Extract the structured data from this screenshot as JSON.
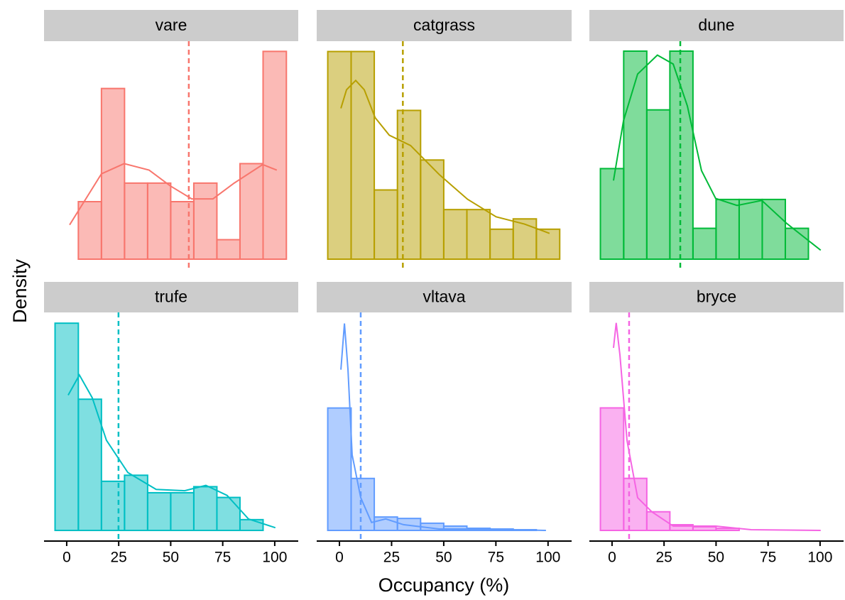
{
  "axis_titles": {
    "x": "Occupancy (%)",
    "y": "Density"
  },
  "chart_data": [
    {
      "type": "histogram",
      "title": "vare",
      "color": "#f8766d",
      "bins": [
        -5.6,
        5.6,
        16.7,
        27.8,
        38.9,
        50,
        61.1,
        72.2,
        83.3,
        94.4,
        105.6
      ],
      "values": [
        0,
        0.0062,
        0.0184,
        0.0082,
        0.0082,
        0.0062,
        0.0082,
        0.0021,
        0.0103,
        0.0224
      ],
      "mean": 58.7,
      "density": {
        "x": [
          1.4,
          16.7,
          27.6,
          39.6,
          49.8,
          60.1,
          70.3,
          80.5,
          94.2,
          101
        ],
        "y": [
          0.0037,
          0.0092,
          0.0103,
          0.0096,
          0.0079,
          0.0065,
          0.0065,
          0.0082,
          0.0102,
          0.0096
        ]
      },
      "xlim": [
        -10.9,
        111.3
      ],
      "ylim": [
        0,
        0.0235
      ]
    },
    {
      "type": "histogram",
      "title": "catgrass",
      "color": "#b79f00",
      "bins": [
        -5.6,
        5.6,
        16.7,
        27.8,
        38.9,
        50,
        61.1,
        72.2,
        83.3,
        94.4,
        105.6
      ],
      "values": [
        0.0201,
        0.0201,
        0.0067,
        0.0144,
        0.0096,
        0.0048,
        0.0048,
        0.0029,
        0.0039,
        0.0029
      ],
      "mean": 30.4,
      "density": {
        "x": [
          0.7,
          3.4,
          7.8,
          11.9,
          17.1,
          23.9,
          34.1,
          47.8,
          61.4,
          75.1,
          88.7,
          100.7
        ],
        "y": [
          0.0146,
          0.0164,
          0.0173,
          0.0164,
          0.0137,
          0.012,
          0.011,
          0.0082,
          0.0058,
          0.0041,
          0.0034,
          0.0025
        ]
      },
      "xlim": [
        -10.9,
        111.3
      ],
      "ylim": [
        0,
        0.0211
      ]
    },
    {
      "type": "histogram",
      "title": "dune",
      "color": "#00ba38",
      "bins": [
        -5.6,
        5.6,
        16.7,
        27.8,
        38.9,
        50,
        61.1,
        72.2,
        83.3,
        94.4,
        105.6
      ],
      "values": [
        0.0091,
        0.0209,
        0.015,
        0.0209,
        0.0031,
        0.006,
        0.006,
        0.006,
        0.0031,
        0
      ],
      "mean": 32.8,
      "density": {
        "x": [
          0.7,
          5.5,
          12.3,
          21.8,
          29.4,
          36.2,
          43,
          49.8,
          60.1,
          72,
          83.9,
          100.3
        ],
        "y": [
          0.0079,
          0.0139,
          0.0186,
          0.0205,
          0.0196,
          0.0154,
          0.0089,
          0.0061,
          0.0054,
          0.0059,
          0.0036,
          0.0009
        ]
      },
      "xlim": [
        -10.9,
        111.3
      ],
      "ylim": [
        0,
        0.0219
      ]
    },
    {
      "type": "histogram",
      "title": "trufe",
      "color": "#00bfc4",
      "bins": [
        -5.6,
        5.6,
        16.7,
        27.8,
        38.9,
        50,
        61.1,
        72.2,
        83.3,
        94.4,
        105.6
      ],
      "values": [
        0.0308,
        0.0195,
        0.0073,
        0.0082,
        0.0056,
        0.0056,
        0.0065,
        0.0049,
        0.0016,
        0
      ],
      "mean": 24.9,
      "density": {
        "x": [
          0.7,
          6.1,
          12.3,
          19.1,
          29.4,
          43,
          56.7,
          66.9,
          77.1,
          87.4,
          100.3
        ],
        "y": [
          0.0201,
          0.0231,
          0.0197,
          0.0134,
          0.0086,
          0.0061,
          0.0059,
          0.0067,
          0.0052,
          0.0017,
          0.0004
        ]
      },
      "xlim": [
        -10.9,
        111.3
      ],
      "ylim": [
        0,
        0.0324
      ],
      "xticks": [
        0,
        25,
        50,
        75,
        100
      ]
    },
    {
      "type": "histogram",
      "title": "vltava",
      "color": "#619cff",
      "bins": [
        -5.6,
        5.6,
        16.7,
        27.8,
        38.9,
        50,
        61.1,
        72.2,
        83.3,
        94.4,
        105.6
      ],
      "values": [
        0.0511,
        0.0217,
        0.0056,
        0.005,
        0.003,
        0.0018,
        0.0009,
        0.0006,
        0.0003,
        0
      ],
      "mean": 10.2,
      "density": {
        "x": [
          0.7,
          2.4,
          4.1,
          6.1,
          10.2,
          15.4,
          22.2,
          30.7,
          47.8,
          68.3,
          99
        ],
        "y": [
          0.0671,
          0.0864,
          0.0671,
          0.0315,
          0.0137,
          0.0033,
          0.0048,
          0.0024,
          0.0006,
          0.0006,
          0
        ]
      },
      "xlim": [
        -10.9,
        111.3
      ],
      "ylim": [
        0,
        0.091
      ],
      "xticks": [
        0,
        25,
        50,
        75,
        100
      ]
    },
    {
      "type": "histogram",
      "title": "bryce",
      "color": "#f564e3",
      "bins": [
        -5.6,
        5.6,
        16.7,
        27.8,
        38.9,
        50,
        61.1,
        72.2,
        83.3,
        94.4,
        105.6
      ],
      "values": [
        0.0539,
        0.0229,
        0.0082,
        0.0025,
        0.0016,
        0.0009,
        0,
        0,
        0,
        0
      ],
      "mean": 8.2,
      "density": {
        "x": [
          0.7,
          2.0,
          3.8,
          7.2,
          12.3,
          19.1,
          29.4,
          49.8,
          66.9,
          100.3
        ],
        "y": [
          0.0803,
          0.0913,
          0.0771,
          0.0395,
          0.0144,
          0.0082,
          0.0019,
          0.0019,
          0.0003,
          0
        ]
      },
      "xlim": [
        -10.9,
        111.3
      ],
      "ylim": [
        0,
        0.0959
      ],
      "xticks": [
        0,
        25,
        50,
        75,
        100
      ]
    }
  ]
}
